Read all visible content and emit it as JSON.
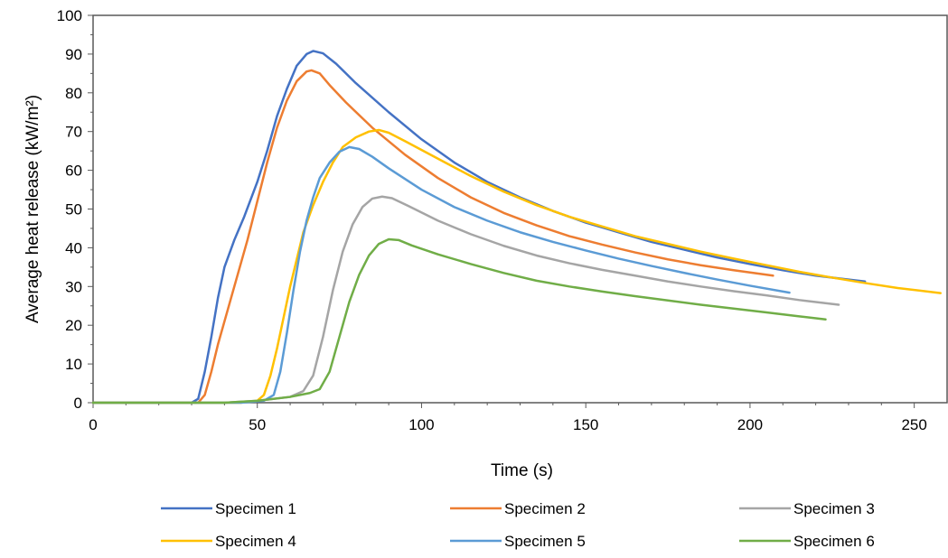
{
  "chart_data": {
    "type": "line",
    "title": "",
    "xlabel": "Time (s)",
    "ylabel": "Average heat release (kW/m²)",
    "xlim": [
      0,
      260
    ],
    "ylim": [
      0,
      100
    ],
    "xticks": [
      0,
      50,
      100,
      150,
      200,
      250
    ],
    "yticks": [
      0,
      10,
      20,
      30,
      40,
      50,
      60,
      70,
      80,
      90,
      100
    ],
    "grid": false,
    "legend_position": "bottom",
    "series": [
      {
        "name": "Specimen 1",
        "color": "#4472C4",
        "points": [
          [
            0,
            0
          ],
          [
            30,
            0
          ],
          [
            32,
            1
          ],
          [
            34,
            8
          ],
          [
            36,
            17
          ],
          [
            38,
            27
          ],
          [
            40,
            35
          ],
          [
            43,
            42
          ],
          [
            46,
            48
          ],
          [
            50,
            57
          ],
          [
            53,
            65
          ],
          [
            56,
            74
          ],
          [
            59,
            81
          ],
          [
            62,
            87
          ],
          [
            65,
            90
          ],
          [
            67,
            90.8
          ],
          [
            70,
            90.2
          ],
          [
            74,
            87.5
          ],
          [
            80,
            82.5
          ],
          [
            90,
            75
          ],
          [
            100,
            68
          ],
          [
            110,
            62
          ],
          [
            120,
            57
          ],
          [
            130,
            53
          ],
          [
            140,
            49.5
          ],
          [
            150,
            46.5
          ],
          [
            160,
            44
          ],
          [
            170,
            41.5
          ],
          [
            180,
            39.5
          ],
          [
            190,
            37.5
          ],
          [
            200,
            35.8
          ],
          [
            210,
            34.2
          ],
          [
            220,
            32.8
          ],
          [
            230,
            31.8
          ],
          [
            235,
            31.3
          ]
        ]
      },
      {
        "name": "Specimen 2",
        "color": "#ED7D31",
        "points": [
          [
            0,
            0
          ],
          [
            32,
            0
          ],
          [
            34,
            2
          ],
          [
            36,
            8
          ],
          [
            38,
            15
          ],
          [
            41,
            24
          ],
          [
            44,
            33
          ],
          [
            47,
            42
          ],
          [
            50,
            52
          ],
          [
            53,
            62
          ],
          [
            56,
            71
          ],
          [
            59,
            78
          ],
          [
            62,
            83
          ],
          [
            65,
            85.5
          ],
          [
            66.5,
            85.8
          ],
          [
            69,
            85
          ],
          [
            72,
            82
          ],
          [
            77,
            77.5
          ],
          [
            85,
            71
          ],
          [
            95,
            64
          ],
          [
            105,
            58
          ],
          [
            115,
            53
          ],
          [
            125,
            49
          ],
          [
            135,
            45.8
          ],
          [
            145,
            43
          ],
          [
            155,
            40.8
          ],
          [
            165,
            38.8
          ],
          [
            175,
            37
          ],
          [
            185,
            35.5
          ],
          [
            195,
            34.2
          ],
          [
            207,
            32.8
          ]
        ]
      },
      {
        "name": "Specimen 3",
        "color": "#A5A5A5",
        "points": [
          [
            0,
            0
          ],
          [
            40,
            0
          ],
          [
            50,
            0.5
          ],
          [
            60,
            1.5
          ],
          [
            64,
            3
          ],
          [
            67,
            7
          ],
          [
            70,
            17
          ],
          [
            73,
            29
          ],
          [
            76,
            39
          ],
          [
            79,
            46
          ],
          [
            82,
            50.5
          ],
          [
            85,
            52.7
          ],
          [
            88,
            53.2
          ],
          [
            91,
            52.8
          ],
          [
            96,
            50.8
          ],
          [
            105,
            47
          ],
          [
            115,
            43.5
          ],
          [
            125,
            40.5
          ],
          [
            135,
            38
          ],
          [
            145,
            36
          ],
          [
            155,
            34.3
          ],
          [
            165,
            32.8
          ],
          [
            175,
            31.3
          ],
          [
            185,
            30
          ],
          [
            195,
            28.8
          ],
          [
            205,
            27.7
          ],
          [
            215,
            26.5
          ],
          [
            227,
            25.3
          ]
        ]
      },
      {
        "name": "Specimen 4",
        "color": "#FFC000",
        "points": [
          [
            0,
            0
          ],
          [
            45,
            0
          ],
          [
            50,
            0.5
          ],
          [
            52,
            2
          ],
          [
            54,
            7
          ],
          [
            56,
            14
          ],
          [
            58,
            22
          ],
          [
            60,
            30
          ],
          [
            62,
            37
          ],
          [
            64,
            44
          ],
          [
            67,
            51
          ],
          [
            70,
            57
          ],
          [
            73,
            62
          ],
          [
            76,
            66
          ],
          [
            80,
            68.5
          ],
          [
            84,
            70
          ],
          [
            87,
            70.4
          ],
          [
            90,
            69.7
          ],
          [
            95,
            67.5
          ],
          [
            105,
            63
          ],
          [
            115,
            58.5
          ],
          [
            125,
            54.5
          ],
          [
            135,
            51
          ],
          [
            145,
            48
          ],
          [
            155,
            45.5
          ],
          [
            165,
            43
          ],
          [
            175,
            41
          ],
          [
            185,
            39
          ],
          [
            195,
            37.2
          ],
          [
            205,
            35.5
          ],
          [
            215,
            33.8
          ],
          [
            225,
            32.3
          ],
          [
            235,
            30.9
          ],
          [
            245,
            29.6
          ],
          [
            258,
            28.3
          ]
        ]
      },
      {
        "name": "Specimen 5",
        "color": "#5B9BD5",
        "points": [
          [
            0,
            0
          ],
          [
            45,
            0
          ],
          [
            52,
            0.5
          ],
          [
            55,
            2
          ],
          [
            57,
            8
          ],
          [
            59,
            18
          ],
          [
            61,
            29
          ],
          [
            63,
            39
          ],
          [
            65,
            47
          ],
          [
            67,
            53
          ],
          [
            69,
            58
          ],
          [
            72,
            62
          ],
          [
            75,
            64.8
          ],
          [
            78,
            66
          ],
          [
            81,
            65.5
          ],
          [
            85,
            63.5
          ],
          [
            90,
            60.5
          ],
          [
            100,
            55
          ],
          [
            110,
            50.5
          ],
          [
            120,
            47
          ],
          [
            130,
            44
          ],
          [
            140,
            41.5
          ],
          [
            150,
            39.3
          ],
          [
            160,
            37.2
          ],
          [
            170,
            35.3
          ],
          [
            180,
            33.5
          ],
          [
            190,
            31.8
          ],
          [
            200,
            30.2
          ],
          [
            212,
            28.4
          ]
        ]
      },
      {
        "name": "Specimen 6",
        "color": "#70AD47",
        "points": [
          [
            0,
            0
          ],
          [
            40,
            0
          ],
          [
            50,
            0.5
          ],
          [
            60,
            1.5
          ],
          [
            66,
            2.5
          ],
          [
            69,
            3.5
          ],
          [
            72,
            8
          ],
          [
            75,
            17
          ],
          [
            78,
            26
          ],
          [
            81,
            33
          ],
          [
            84,
            38
          ],
          [
            87,
            41
          ],
          [
            90,
            42.2
          ],
          [
            93,
            42
          ],
          [
            97,
            40.6
          ],
          [
            105,
            38.3
          ],
          [
            115,
            35.8
          ],
          [
            125,
            33.5
          ],
          [
            135,
            31.5
          ],
          [
            145,
            30
          ],
          [
            155,
            28.7
          ],
          [
            165,
            27.5
          ],
          [
            175,
            26.4
          ],
          [
            185,
            25.3
          ],
          [
            195,
            24.3
          ],
          [
            205,
            23.3
          ],
          [
            215,
            22.3
          ],
          [
            223,
            21.5
          ]
        ]
      }
    ]
  }
}
